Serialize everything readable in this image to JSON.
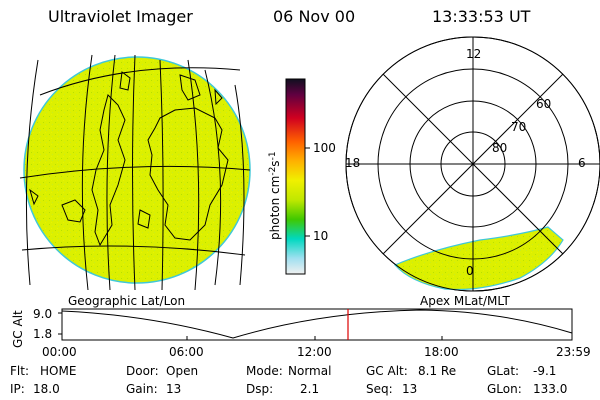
{
  "header": {
    "instrument": "Ultraviolet Imager",
    "date": "06 Nov 00",
    "time": "13:33:53 UT"
  },
  "colorbar": {
    "label": "photon cm-2s-1",
    "label_main": "photon cm",
    "label_sup1": "-2",
    "label_s": "s",
    "label_sup2": "-1",
    "ticks": [
      "100",
      "10"
    ]
  },
  "polar_plot": {
    "mlt_labels": {
      "top": "12",
      "left": "18",
      "right": "6",
      "bottom": "0"
    },
    "lat_labels": [
      "60",
      "70",
      "80"
    ]
  },
  "geo_label": "Geographic Lat/Lon",
  "apex_label": "Apex MLat/MLT",
  "altitude_plot": {
    "axis_label": "GC Alt",
    "y_ticks": [
      "9.0",
      "1.8"
    ],
    "x_ticks": [
      "00:00",
      "06:00",
      "12:00",
      "18:00",
      "23:59"
    ]
  },
  "status": {
    "flt_label": "Flt:",
    "flt_value": "HOME",
    "ip_label": "IP:",
    "ip_value": "18.0",
    "door_label": "Door:",
    "door_value": "Open",
    "gain_label": "Gain:",
    "gain_value": "13",
    "mode_label": "Mode:",
    "mode_value": "Normal",
    "dsp_label": "Dsp:",
    "dsp_value": "2.1",
    "gcalt_label": "GC Alt:",
    "gcalt_value": "8.1 Re",
    "seq_label": "Seq:",
    "seq_value": "13",
    "glat_label": "GLat:",
    "glat_value": "-9.1",
    "glon_label": "GLon:",
    "glon_value": "133.0"
  },
  "colors": {
    "emission": "#dcf000",
    "emission_edge": "#40c8d8",
    "marker": "#dd0000"
  }
}
